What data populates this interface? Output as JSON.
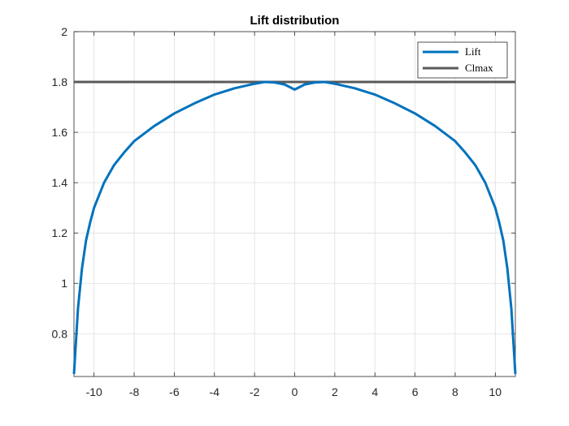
{
  "chart_data": {
    "type": "line",
    "title": "Lift distribution",
    "xlabel": "",
    "ylabel": "",
    "xlim": [
      -11,
      11
    ],
    "ylim": [
      0.63,
      2
    ],
    "xticks": [
      -10,
      -8,
      -6,
      -4,
      -2,
      0,
      2,
      4,
      6,
      8,
      10
    ],
    "yticks": [
      0.8,
      1,
      1.2,
      1.4,
      1.6,
      1.8,
      2
    ],
    "grid": true,
    "legend": {
      "placement": "top-right",
      "entries": [
        "Lift",
        "Clmax"
      ]
    },
    "series": [
      {
        "name": "Lift",
        "color": "#0072BD",
        "x": [
          -11,
          -10.8,
          -10.6,
          -10.4,
          -10.2,
          -10,
          -9.5,
          -9,
          -8.5,
          -8,
          -7,
          -6,
          -5,
          -4,
          -3,
          -2,
          -1.5,
          -1,
          -0.5,
          0,
          0.5,
          1,
          1.5,
          2,
          3,
          4,
          5,
          6,
          7,
          8,
          8.5,
          9,
          9.5,
          10,
          10.2,
          10.4,
          10.6,
          10.8,
          11
        ],
        "y": [
          0.64,
          0.9,
          1.06,
          1.17,
          1.24,
          1.3,
          1.4,
          1.47,
          1.52,
          1.565,
          1.625,
          1.675,
          1.715,
          1.75,
          1.775,
          1.793,
          1.8,
          1.798,
          1.79,
          1.77,
          1.79,
          1.798,
          1.8,
          1.793,
          1.775,
          1.75,
          1.715,
          1.675,
          1.625,
          1.565,
          1.52,
          1.47,
          1.4,
          1.3,
          1.24,
          1.17,
          1.06,
          0.9,
          0.64
        ]
      },
      {
        "name": "Clmax",
        "color": "#595959",
        "x": [
          -11,
          11
        ],
        "y": [
          1.8,
          1.8
        ]
      }
    ]
  }
}
